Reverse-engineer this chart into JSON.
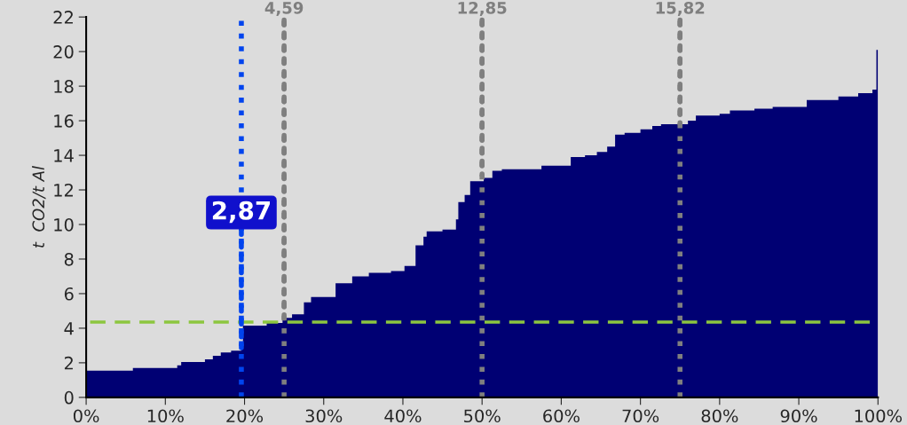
{
  "chart_data": {
    "type": "area",
    "ylabel": "t  CO2/t Al",
    "color": "#000073",
    "x": [
      0,
      5.9,
      11.5,
      12,
      15,
      16,
      17,
      18.3,
      19.6,
      19.8,
      22.8,
      24.8,
      26,
      27.5,
      28.4,
      31.5,
      33.6,
      35.7,
      38.5,
      40.2,
      41.6,
      42.6,
      43,
      45,
      46.7,
      47,
      47.8,
      48.5,
      50.2,
      51.3,
      52.5,
      57.5,
      61.2,
      63,
      64.5,
      65.8,
      66.8,
      68,
      70,
      71.5,
      72.6,
      76,
      77,
      80,
      81.3,
      84.4,
      86.7,
      91,
      95,
      97.5,
      99.3,
      99.8,
      100
    ],
    "values": [
      1.55,
      1.7,
      1.85,
      2.05,
      2.2,
      2.4,
      2.6,
      2.7,
      2.87,
      4.15,
      4.3,
      4.6,
      4.8,
      5.5,
      5.8,
      6.6,
      7.0,
      7.2,
      7.3,
      7.6,
      8.8,
      9.3,
      9.6,
      9.7,
      10.3,
      11.3,
      11.7,
      12.5,
      12.7,
      13.1,
      13.2,
      13.4,
      13.9,
      14.0,
      14.2,
      14.5,
      15.2,
      15.3,
      15.5,
      15.7,
      15.8,
      16.0,
      16.3,
      16.4,
      16.6,
      16.7,
      16.8,
      17.2,
      17.4,
      17.6,
      17.8,
      20.1,
      20.1
    ],
    "xlim": [
      0,
      100
    ],
    "ylim": [
      0,
      22
    ],
    "xticks": [
      {
        "value": 0,
        "label": "0%"
      },
      {
        "value": 10,
        "label": "10%"
      },
      {
        "value": 20,
        "label": "20%"
      },
      {
        "value": 30,
        "label": "30%"
      },
      {
        "value": 40,
        "label": "40%"
      },
      {
        "value": 50,
        "label": "50%"
      },
      {
        "value": 60,
        "label": "60%"
      },
      {
        "value": 70,
        "label": "70%"
      },
      {
        "value": 80,
        "label": "80%"
      },
      {
        "value": 90,
        "label": "90%"
      },
      {
        "value": 100,
        "label": "100%"
      }
    ],
    "yticks": [
      0,
      2,
      4,
      6,
      8,
      10,
      12,
      14,
      16,
      18,
      20,
      22
    ],
    "ref_lines": [
      {
        "axis": "x",
        "value": 25,
        "color": "#7f7f7f",
        "line_style": "dotted"
      },
      {
        "axis": "x",
        "value": 50,
        "color": "#7f7f7f",
        "line_style": "dotted"
      },
      {
        "axis": "x",
        "value": 75,
        "color": "#7f7f7f",
        "line_style": "dotted"
      },
      {
        "axis": "x",
        "value": 19.6,
        "color": "#0044ee",
        "line_style": "dotted"
      },
      {
        "axis": "y",
        "value": 4.35,
        "color": "#8cc63f",
        "line_style": "dashed"
      }
    ],
    "annotations": [
      {
        "text": "2,87",
        "x": 19.6,
        "y": 2.87
      },
      {
        "text": "4,59",
        "x": 25,
        "y": 4.59
      },
      {
        "text": "12,85",
        "x": 50,
        "y": 12.85
      },
      {
        "text": "15,82",
        "x": 75,
        "y": 15.82
      }
    ],
    "grid": false,
    "legend": false
  }
}
